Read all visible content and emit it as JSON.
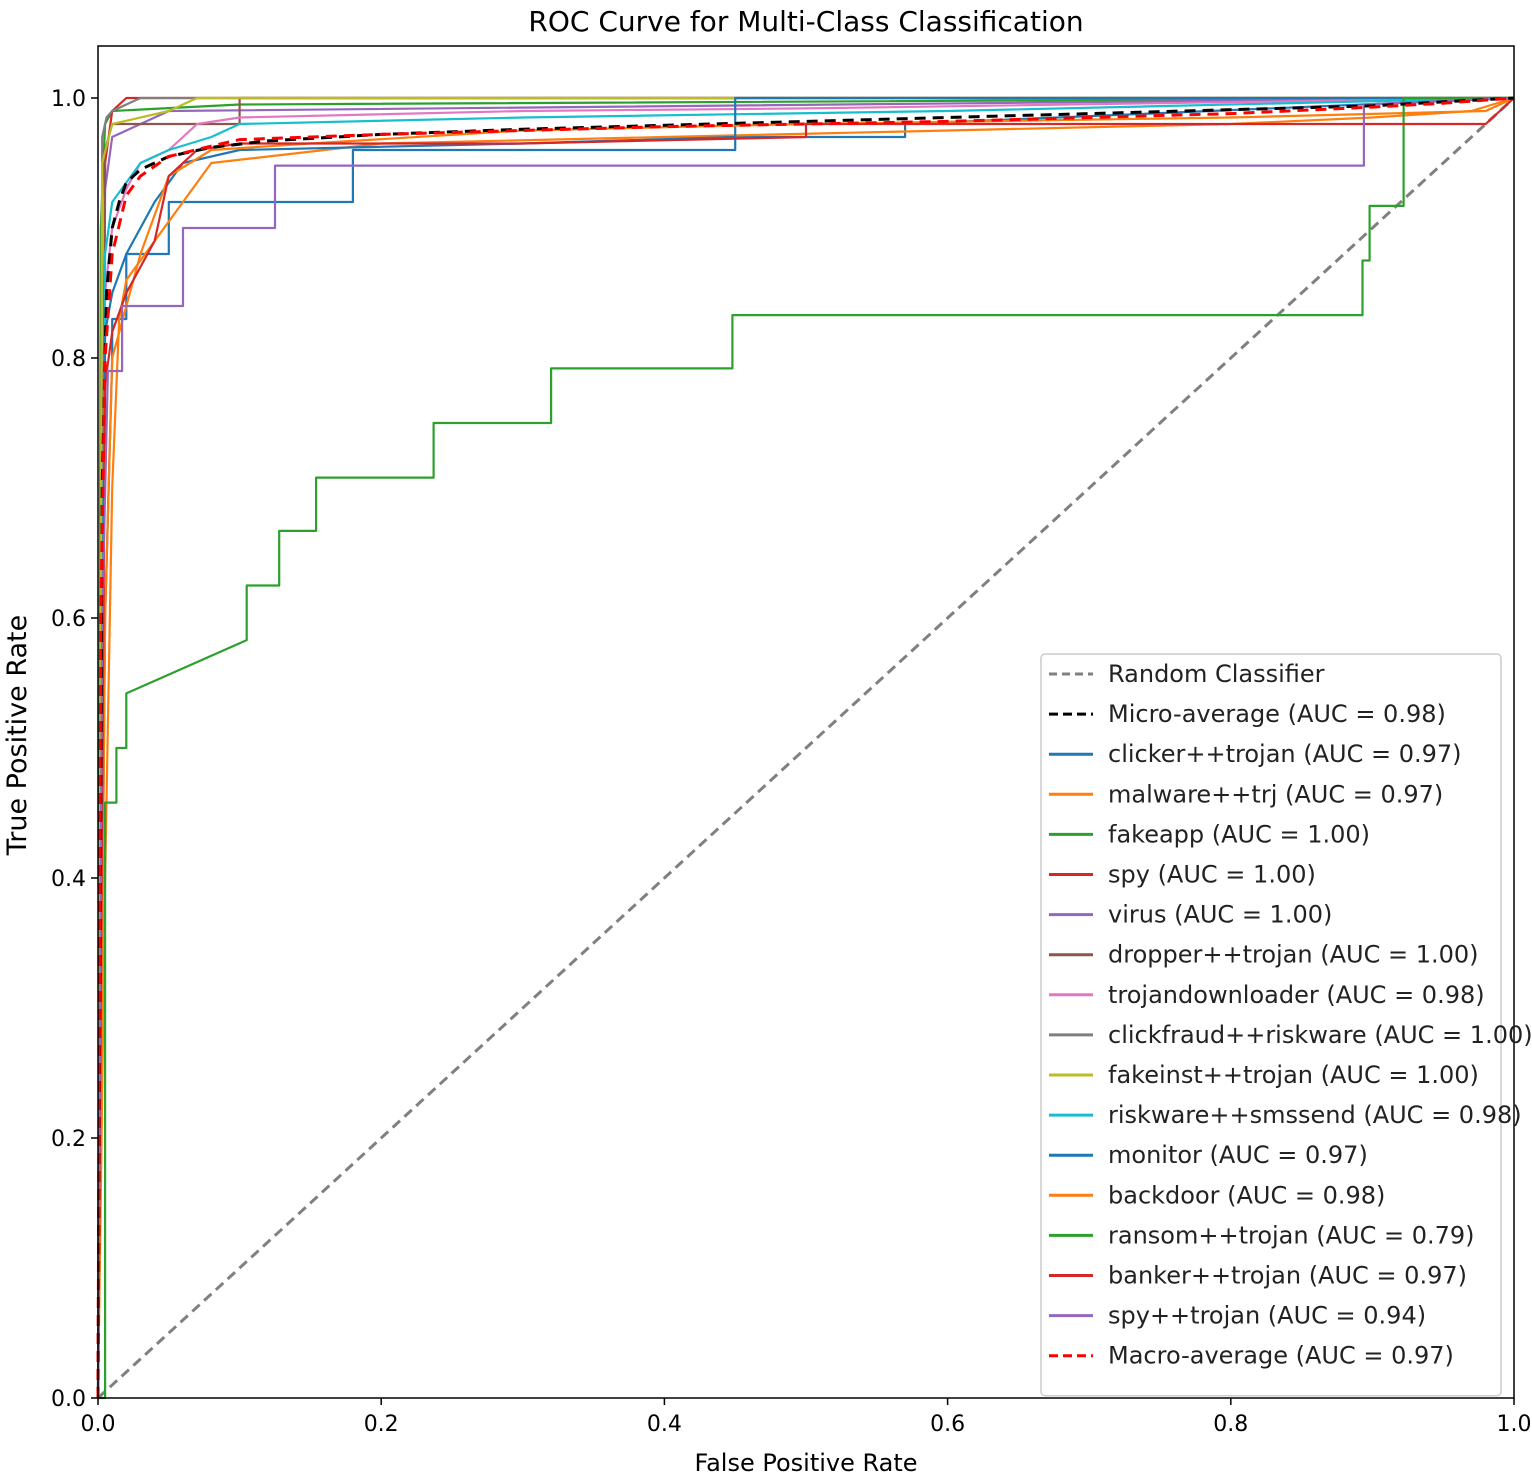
{
  "chart_data": {
    "type": "line",
    "title": "ROC Curve for Multi-Class Classification",
    "xlabel": "False Positive Rate",
    "ylabel": "True Positive Rate",
    "xlim": [
      0.0,
      1.0
    ],
    "ylim": [
      0.0,
      1.04
    ],
    "xticks": [
      "0.0",
      "0.2",
      "0.4",
      "0.6",
      "0.8",
      "1.0"
    ],
    "yticks": [
      "0.0",
      "0.2",
      "0.4",
      "0.6",
      "0.8",
      "1.0"
    ],
    "grid": false,
    "legend_position": "lower-right",
    "series": [
      {
        "name": "Random Classifier",
        "legend": "Random Classifier",
        "color": "#808080",
        "dash": "dashed",
        "x": [
          0,
          1
        ],
        "y": [
          0,
          1
        ]
      },
      {
        "name": "Micro-average",
        "legend": "Micro-average (AUC = 0.98)",
        "color": "#000000",
        "dash": "dashed",
        "x": [
          0,
          0.003,
          0.006,
          0.01,
          0.015,
          0.02,
          0.03,
          0.05,
          0.08,
          0.12,
          0.2,
          0.3,
          0.5,
          0.7,
          0.9,
          1.0
        ],
        "y": [
          0,
          0.7,
          0.85,
          0.9,
          0.92,
          0.935,
          0.945,
          0.955,
          0.962,
          0.967,
          0.972,
          0.976,
          0.982,
          0.988,
          0.994,
          1.0
        ]
      },
      {
        "name": "clicker++trojan",
        "legend": "clicker++trojan (AUC = 0.97)",
        "color": "#1f77b4",
        "dash": "solid",
        "x": [
          0,
          0.005,
          0.01,
          0.01,
          0.02,
          0.02,
          0.03,
          0.05,
          0.05,
          0.1,
          0.18,
          0.18,
          0.45,
          0.45,
          0.57,
          0.57,
          1.0
        ],
        "y": [
          0,
          0.6,
          0.8,
          0.83,
          0.83,
          0.88,
          0.88,
          0.88,
          0.92,
          0.92,
          0.92,
          0.96,
          0.96,
          0.97,
          0.97,
          0.98,
          1.0
        ]
      },
      {
        "name": "malware++trj",
        "legend": "malware++trj (AUC = 0.97)",
        "color": "#ff7f0e",
        "dash": "solid",
        "x": [
          0,
          0.005,
          0.01,
          0.015,
          0.02,
          0.04,
          0.06,
          0.08,
          0.2,
          0.4,
          0.6,
          0.8,
          0.9,
          0.97,
          1.0
        ],
        "y": [
          0,
          0.4,
          0.7,
          0.83,
          0.86,
          0.89,
          0.92,
          0.95,
          0.965,
          0.97,
          0.975,
          0.98,
          0.985,
          0.99,
          1.0
        ]
      },
      {
        "name": "fakeapp",
        "legend": "fakeapp (AUC = 1.00)",
        "color": "#2ca02c",
        "dash": "solid",
        "x": [
          0,
          0.002,
          0.005,
          0.01,
          0.1,
          1.0
        ],
        "y": [
          0,
          0.9,
          0.98,
          0.99,
          0.995,
          1.0
        ]
      },
      {
        "name": "spy",
        "legend": "spy (AUC = 1.00)",
        "color": "#d62728",
        "dash": "solid",
        "x": [
          0,
          0.005,
          0.01,
          0.02,
          1.0
        ],
        "y": [
          0,
          0.95,
          0.99,
          1.0,
          1.0
        ]
      },
      {
        "name": "virus",
        "legend": "virus (AUC = 1.00)",
        "color": "#9467bd",
        "dash": "solid",
        "x": [
          0,
          0.005,
          0.01,
          0.05,
          1.0
        ],
        "y": [
          0,
          0.93,
          0.97,
          0.99,
          1.0
        ]
      },
      {
        "name": "dropper++trojan",
        "legend": "dropper++trojan (AUC = 1.00)",
        "color": "#8c564b",
        "dash": "solid",
        "x": [
          0,
          0.005,
          0.01,
          0.1,
          0.1,
          1.0
        ],
        "y": [
          0,
          0.96,
          0.98,
          0.98,
          1.0,
          1.0
        ]
      },
      {
        "name": "trojandownloader",
        "legend": "trojandownloader (AUC = 0.98)",
        "color": "#e377c2",
        "dash": "solid",
        "x": [
          0,
          0.005,
          0.01,
          0.02,
          0.03,
          0.05,
          0.06,
          0.07,
          0.1,
          0.3,
          0.5,
          1.0
        ],
        "y": [
          0,
          0.85,
          0.9,
          0.93,
          0.95,
          0.96,
          0.97,
          0.98,
          0.985,
          0.99,
          0.992,
          1.0
        ]
      },
      {
        "name": "clickfraud++riskware",
        "legend": "clickfraud++riskware (AUC = 1.00)",
        "color": "#7f7f7f",
        "dash": "solid",
        "x": [
          0,
          0.003,
          0.006,
          0.01,
          0.03,
          1.0
        ],
        "y": [
          0,
          0.97,
          0.985,
          0.99,
          1.0,
          1.0
        ]
      },
      {
        "name": "fakeinst++trojan",
        "legend": "fakeinst++trojan (AUC = 1.00)",
        "color": "#bcbd22",
        "dash": "solid",
        "x": [
          0,
          0.003,
          0.01,
          0.05,
          0.07,
          1.0
        ],
        "y": [
          0,
          0.95,
          0.98,
          0.99,
          1.0,
          1.0
        ]
      },
      {
        "name": "riskware++smssend",
        "legend": "riskware++smssend (AUC = 0.98)",
        "color": "#17becf",
        "dash": "solid",
        "x": [
          0,
          0.005,
          0.01,
          0.03,
          0.05,
          0.08,
          0.1,
          0.3,
          0.6,
          1.0
        ],
        "y": [
          0,
          0.88,
          0.92,
          0.95,
          0.96,
          0.97,
          0.98,
          0.985,
          0.99,
          1.0
        ]
      },
      {
        "name": "monitor",
        "legend": "monitor (AUC = 0.97)",
        "color": "#1f77b4",
        "dash": "solid",
        "x": [
          0,
          0.005,
          0.01,
          0.02,
          0.04,
          0.06,
          0.1,
          0.3,
          0.45,
          0.45,
          1.0
        ],
        "y": [
          0,
          0.82,
          0.85,
          0.88,
          0.92,
          0.95,
          0.96,
          0.965,
          0.97,
          1.0,
          1.0
        ]
      },
      {
        "name": "backdoor",
        "legend": "backdoor (AUC = 0.98)",
        "color": "#ff7f0e",
        "dash": "solid",
        "x": [
          0,
          0.005,
          0.01,
          0.03,
          0.05,
          0.08,
          0.15,
          0.3,
          0.5,
          0.8,
          0.98,
          1.0
        ],
        "y": [
          0,
          0.6,
          0.8,
          0.88,
          0.94,
          0.96,
          0.965,
          0.975,
          0.98,
          0.985,
          0.99,
          1.0
        ]
      },
      {
        "name": "ransom++trojan",
        "legend": "ransom++trojan (AUC = 0.79)",
        "color": "#2ca02c",
        "dash": "solid",
        "x": [
          0,
          0.005,
          0.005,
          0.013,
          0.013,
          0.02,
          0.02,
          0.105,
          0.105,
          0.128,
          0.128,
          0.154,
          0.154,
          0.237,
          0.237,
          0.32,
          0.32,
          0.448,
          0.448,
          0.893,
          0.893,
          0.898,
          0.898,
          0.922,
          0.922,
          1.0
        ],
        "y": [
          0,
          0.0,
          0.458,
          0.458,
          0.5,
          0.5,
          0.542,
          0.583,
          0.625,
          0.625,
          0.667,
          0.667,
          0.708,
          0.708,
          0.75,
          0.75,
          0.792,
          0.792,
          0.833,
          0.833,
          0.875,
          0.875,
          0.917,
          0.917,
          1.0,
          1.0
        ]
      },
      {
        "name": "banker++trojan",
        "legend": "banker++trojan (AUC = 0.97)",
        "color": "#d62728",
        "dash": "solid",
        "x": [
          0,
          0.005,
          0.01,
          0.02,
          0.04,
          0.05,
          0.07,
          0.1,
          0.3,
          0.5,
          0.5,
          0.98,
          1.0
        ],
        "y": [
          0,
          0.78,
          0.82,
          0.85,
          0.89,
          0.94,
          0.96,
          0.965,
          0.965,
          0.97,
          0.98,
          0.98,
          1.0
        ]
      },
      {
        "name": "spy++trojan",
        "legend": "spy++trojan (AUC = 0.94)",
        "color": "#9467bd",
        "dash": "solid",
        "x": [
          0,
          0.003,
          0.007,
          0.017,
          0.017,
          0.035,
          0.035,
          0.06,
          0.06,
          0.125,
          0.125,
          0.894,
          0.894,
          1.0
        ],
        "y": [
          0,
          0.6,
          0.79,
          0.79,
          0.84,
          0.84,
          0.84,
          0.84,
          0.9,
          0.9,
          0.948,
          0.948,
          0.995,
          1.0
        ]
      },
      {
        "name": "Macro-average",
        "legend": "Macro-average (AUC = 0.97)",
        "color": "#ff0000",
        "dash": "dashed",
        "x": [
          0,
          0.002,
          0.005,
          0.01,
          0.02,
          0.03,
          0.05,
          0.08,
          0.1,
          0.2,
          0.4,
          0.6,
          0.8,
          0.9,
          0.95,
          1.0
        ],
        "y": [
          0,
          0.6,
          0.8,
          0.88,
          0.925,
          0.94,
          0.955,
          0.963,
          0.968,
          0.972,
          0.978,
          0.982,
          0.988,
          0.993,
          0.996,
          1.0
        ]
      }
    ]
  }
}
